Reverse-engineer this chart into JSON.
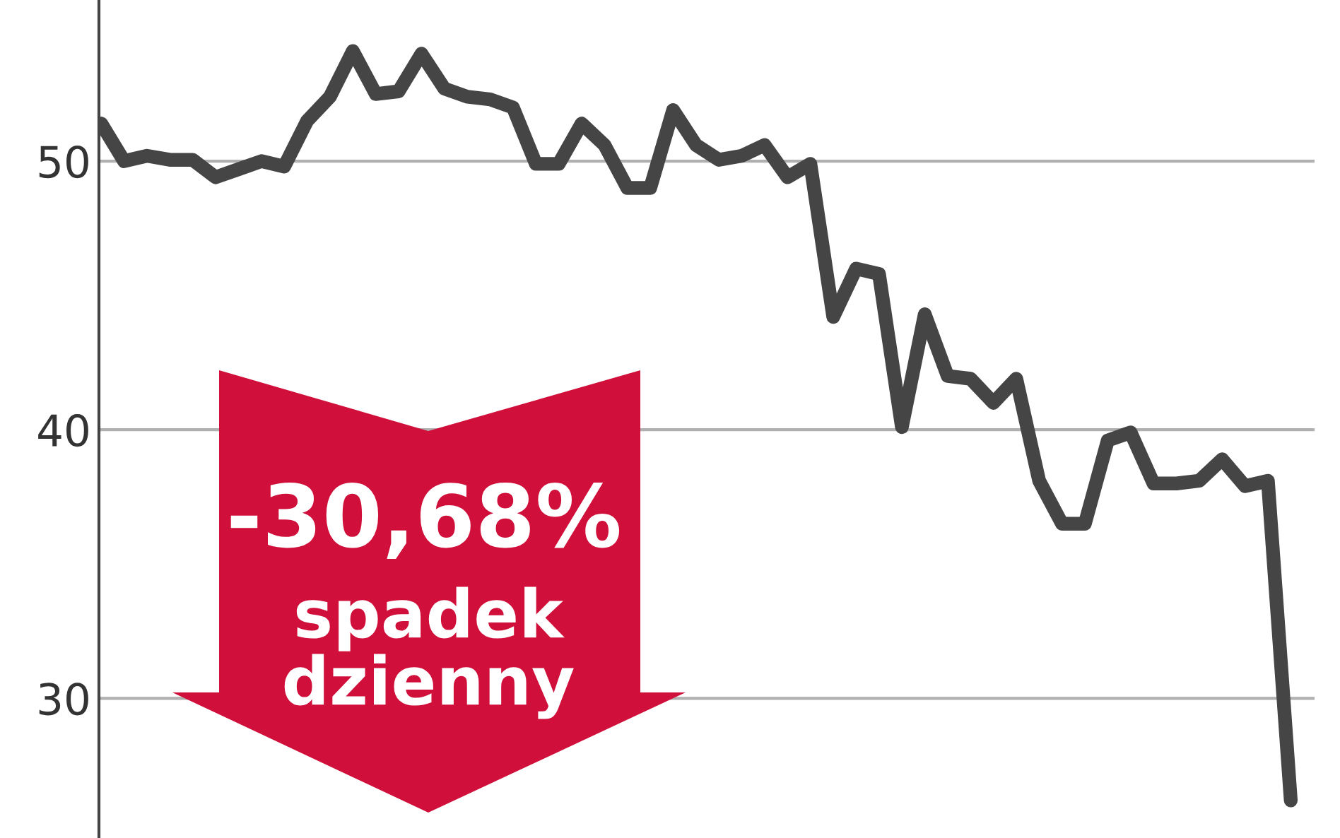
{
  "chart_data": {
    "type": "line",
    "categories": [
      null,
      null,
      null,
      null,
      null,
      null,
      null,
      null,
      null,
      null,
      null,
      null,
      null,
      null,
      null,
      null,
      null,
      null,
      null,
      null,
      null,
      null,
      null,
      null,
      null,
      null,
      null,
      null,
      null,
      null,
      null,
      null,
      null,
      null,
      null,
      null,
      null,
      null,
      null,
      null,
      null,
      null,
      null,
      null,
      null,
      null,
      null,
      null,
      null,
      null,
      null,
      null,
      null
    ],
    "series": [
      {
        "color": "#454545",
        "values": [
          51.4,
          50.0,
          50.2,
          50.05,
          50.05,
          49.4,
          49.7,
          50.0,
          49.8,
          51.5,
          52.4,
          54.1,
          52.5,
          52.6,
          54.0,
          52.7,
          52.4,
          52.3,
          52.0,
          49.9,
          49.9,
          51.4,
          50.6,
          49.0,
          49.0,
          51.9,
          50.6,
          50.05,
          50.2,
          50.6,
          49.4,
          49.9,
          44.2,
          46.0,
          45.8,
          40.1,
          44.3,
          42.0,
          41.9,
          41.0,
          41.9,
          38.1,
          36.5,
          36.5,
          39.6,
          39.9,
          38.0,
          38.0,
          38.1,
          38.9,
          37.9,
          38.1,
          26.2
        ]
      }
    ],
    "ylim": [
      24.8,
      56.0
    ],
    "yticks": [
      30,
      40,
      50
    ],
    "grid": "y",
    "tick_labels": "y",
    "marker": "none",
    "line_style": "solid",
    "annotations": [
      "-30,68%",
      "spadek\ndzienny"
    ]
  }
}
